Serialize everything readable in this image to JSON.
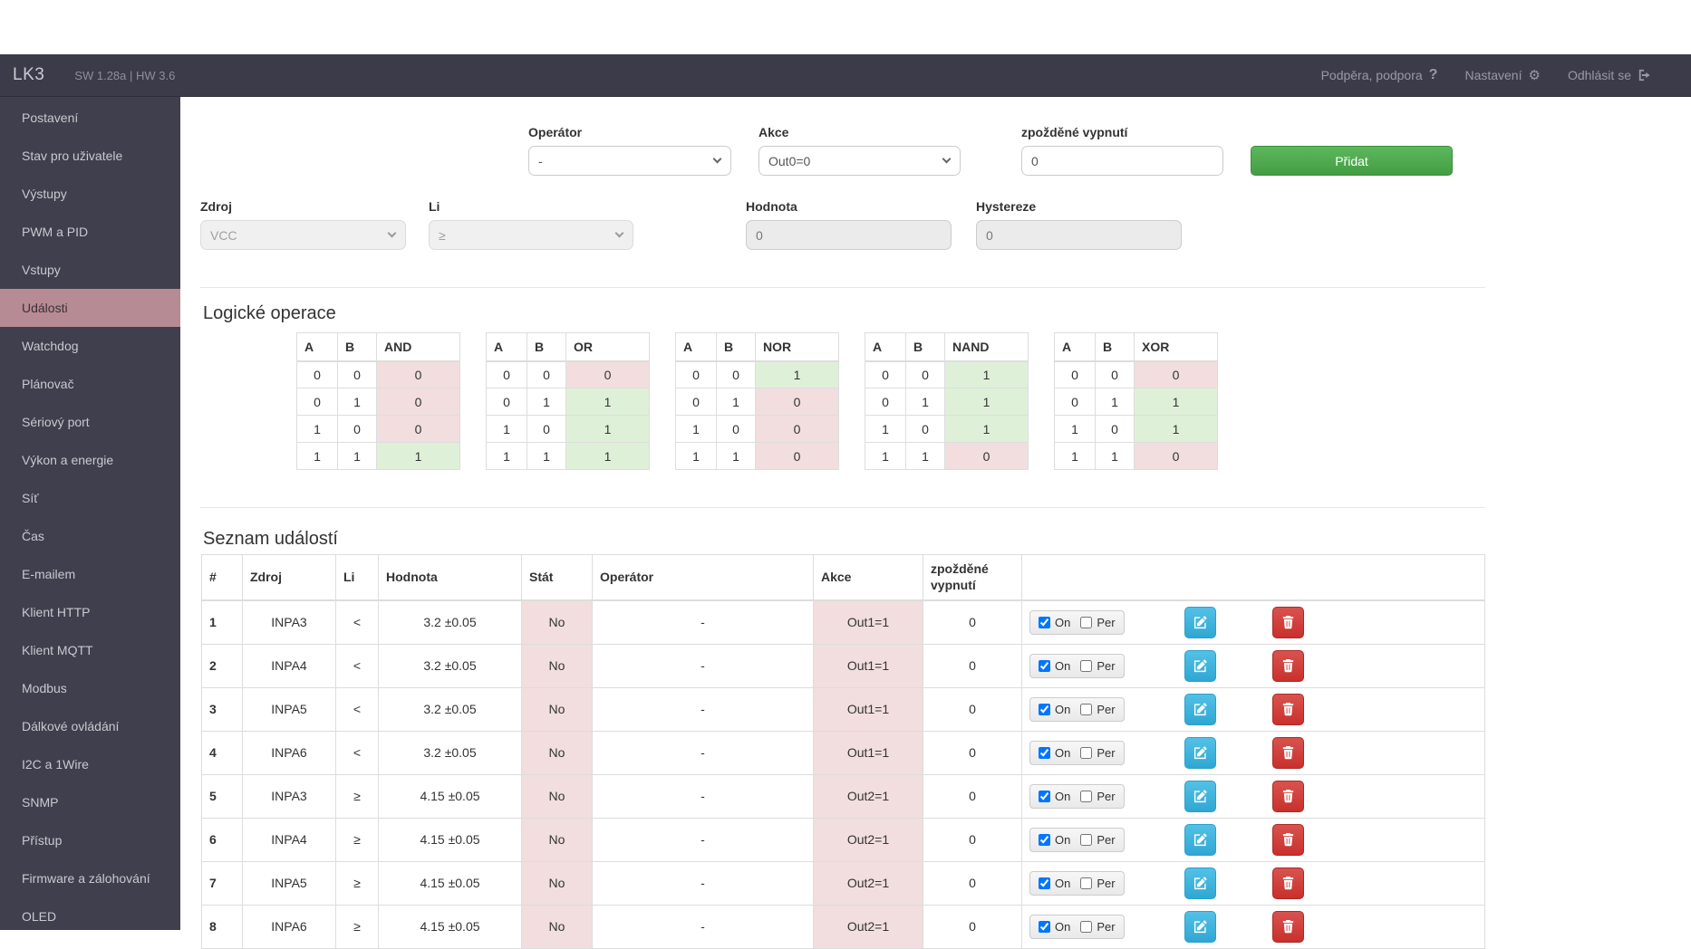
{
  "navbar": {
    "brand": "LK3",
    "version": "SW 1.28a | HW 3.6",
    "links": [
      {
        "label": "Podpěra, podpora",
        "icon": "question-icon"
      },
      {
        "label": "Nastavení",
        "icon": "gear-icon"
      },
      {
        "label": "Odhlásit se",
        "icon": "sign-out-icon"
      }
    ]
  },
  "sidebar": {
    "items": [
      {
        "id": "postaveni",
        "label": "Postavení",
        "active": false
      },
      {
        "id": "stav-pro-uzivatele",
        "label": "Stav pro uživatele",
        "active": false
      },
      {
        "id": "vystupy",
        "label": "Výstupy",
        "active": false
      },
      {
        "id": "pwm-a-pid",
        "label": "PWM a PID",
        "active": false
      },
      {
        "id": "vstupy",
        "label": "Vstupy",
        "active": false
      },
      {
        "id": "udalosti",
        "label": "Události",
        "active": true
      },
      {
        "id": "watchdog",
        "label": "Watchdog",
        "active": false
      },
      {
        "id": "planovac",
        "label": "Plánovač",
        "active": false
      },
      {
        "id": "seriovy-port",
        "label": "Sériový port",
        "active": false
      },
      {
        "id": "vykon-a-energie",
        "label": "Výkon a energie",
        "active": false
      },
      {
        "id": "sit",
        "label": "Síť",
        "active": false
      },
      {
        "id": "cas",
        "label": "Čas",
        "active": false
      },
      {
        "id": "e-mailem",
        "label": "E-mailem",
        "active": false
      },
      {
        "id": "klient-http",
        "label": "Klient HTTP",
        "active": false
      },
      {
        "id": "klient-mqtt",
        "label": "Klient MQTT",
        "active": false
      },
      {
        "id": "modbus",
        "label": "Modbus",
        "active": false
      },
      {
        "id": "dalkove-ovladani",
        "label": "Dálkové ovládání",
        "active": false
      },
      {
        "id": "i2c-a-1wire",
        "label": "I2C a 1Wire",
        "active": false
      },
      {
        "id": "snmp",
        "label": "SNMP",
        "active": false
      },
      {
        "id": "pristup",
        "label": "Přístup",
        "active": false
      },
      {
        "id": "firmware-a-zalohovani",
        "label": "Firmware a zálohování",
        "active": false
      },
      {
        "id": "oled",
        "label": "OLED",
        "active": false
      }
    ]
  },
  "form": {
    "row1": {
      "operator": {
        "label": "Operátor",
        "value": "-"
      },
      "akce": {
        "label": "Akce",
        "value": "Out0=0"
      },
      "delay": {
        "label": "zpožděné vypnutí",
        "value": "0"
      },
      "submit_label": "Přidat"
    },
    "row2": {
      "zdroj": {
        "label": "Zdroj",
        "value": "VCC"
      },
      "li": {
        "label": "Li",
        "value": "≥"
      },
      "hodnota": {
        "label": "Hodnota",
        "value": "0"
      },
      "hystereze": {
        "label": "Hystereze",
        "value": "0"
      }
    }
  },
  "logic": {
    "title": "Logické operace",
    "col_a": "A",
    "col_b": "B",
    "tables": [
      {
        "name": "AND",
        "rows": [
          [
            0,
            0,
            0
          ],
          [
            0,
            1,
            0
          ],
          [
            1,
            0,
            0
          ],
          [
            1,
            1,
            1
          ]
        ]
      },
      {
        "name": "OR",
        "rows": [
          [
            0,
            0,
            0
          ],
          [
            0,
            1,
            1
          ],
          [
            1,
            0,
            1
          ],
          [
            1,
            1,
            1
          ]
        ]
      },
      {
        "name": "NOR",
        "rows": [
          [
            0,
            0,
            1
          ],
          [
            0,
            1,
            0
          ],
          [
            1,
            0,
            0
          ],
          [
            1,
            1,
            0
          ]
        ]
      },
      {
        "name": "NAND",
        "rows": [
          [
            0,
            0,
            1
          ],
          [
            0,
            1,
            1
          ],
          [
            1,
            0,
            1
          ],
          [
            1,
            1,
            0
          ]
        ]
      },
      {
        "name": "XOR",
        "rows": [
          [
            0,
            0,
            0
          ],
          [
            0,
            1,
            1
          ],
          [
            1,
            0,
            1
          ],
          [
            1,
            1,
            0
          ]
        ]
      }
    ]
  },
  "events": {
    "title": "Seznam událostí",
    "headers": [
      "#",
      "Zdroj",
      "Li",
      "Hodnota",
      "Stát",
      "Operátor",
      "Akce",
      "zpožděné vypnutí",
      ""
    ],
    "on_label": "On",
    "per_label": "Per",
    "rows": [
      {
        "num": "1",
        "zdroj": "INPA3",
        "li": "<",
        "hodnota": "3.2 ±0.05",
        "stat": "No",
        "operator": "-",
        "akce": "Out1=1",
        "delay": "0",
        "on": true,
        "per": false
      },
      {
        "num": "2",
        "zdroj": "INPA4",
        "li": "<",
        "hodnota": "3.2 ±0.05",
        "stat": "No",
        "operator": "-",
        "akce": "Out1=1",
        "delay": "0",
        "on": true,
        "per": false
      },
      {
        "num": "3",
        "zdroj": "INPA5",
        "li": "<",
        "hodnota": "3.2 ±0.05",
        "stat": "No",
        "operator": "-",
        "akce": "Out1=1",
        "delay": "0",
        "on": true,
        "per": false
      },
      {
        "num": "4",
        "zdroj": "INPA6",
        "li": "<",
        "hodnota": "3.2 ±0.05",
        "stat": "No",
        "operator": "-",
        "akce": "Out1=1",
        "delay": "0",
        "on": true,
        "per": false
      },
      {
        "num": "5",
        "zdroj": "INPA3",
        "li": "≥",
        "hodnota": "4.15 ±0.05",
        "stat": "No",
        "operator": "-",
        "akce": "Out2=1",
        "delay": "0",
        "on": true,
        "per": false
      },
      {
        "num": "6",
        "zdroj": "INPA4",
        "li": "≥",
        "hodnota": "4.15 ±0.05",
        "stat": "No",
        "operator": "-",
        "akce": "Out2=1",
        "delay": "0",
        "on": true,
        "per": false
      },
      {
        "num": "7",
        "zdroj": "INPA5",
        "li": "≥",
        "hodnota": "4.15 ±0.05",
        "stat": "No",
        "operator": "-",
        "akce": "Out2=1",
        "delay": "0",
        "on": true,
        "per": false
      },
      {
        "num": "8",
        "zdroj": "INPA6",
        "li": "≥",
        "hodnota": "4.15 ±0.05",
        "stat": "No",
        "operator": "-",
        "akce": "Out2=1",
        "delay": "0",
        "on": true,
        "per": false
      }
    ]
  },
  "colors": {
    "navbar_bg": "#3b3b49",
    "sidebar_bg": "#3f3f4d",
    "sidebar_active_bg": "#b78b94",
    "accent_green": "#5cb85c",
    "edit_blue": "#39b3d7",
    "delete_red": "#d9534f",
    "true_cell_bg": "#dff0d8",
    "false_cell_bg": "#f2dede"
  }
}
